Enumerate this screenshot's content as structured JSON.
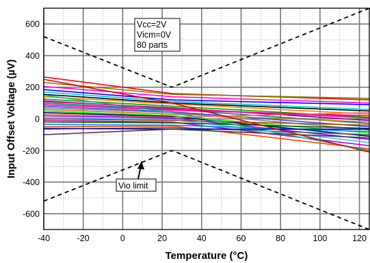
{
  "chart_data": {
    "type": "line",
    "xlabel": "Temperature (°C)",
    "ylabel": "Input Offset Voltage (µV)",
    "xlim": [
      -40,
      125
    ],
    "ylim": [
      -700,
      700
    ],
    "xticks": [
      -40,
      -20,
      0,
      20,
      40,
      60,
      80,
      100,
      120
    ],
    "yticks": [
      -600,
      -400,
      -200,
      0,
      200,
      400,
      600
    ],
    "grid": true,
    "conditions": [
      "Vcc=2V",
      "Vicm=0V",
      "80 parts"
    ],
    "limit_label": "Vio limit",
    "limit_lines": {
      "upper": [
        {
          "x": -40,
          "y": 520
        },
        {
          "x": 25,
          "y": 200
        },
        {
          "x": 125,
          "y": 700
        }
      ],
      "lower": [
        {
          "x": -40,
          "y": -520
        },
        {
          "x": 25,
          "y": -200
        },
        {
          "x": 125,
          "y": -700
        }
      ]
    },
    "series": [
      {
        "color": "#ff0000",
        "values": [
          [
            -40,
            265
          ],
          [
            25,
            160
          ],
          [
            125,
            120
          ]
        ]
      },
      {
        "color": "#808000",
        "values": [
          [
            -40,
            230
          ],
          [
            25,
            155
          ],
          [
            125,
            130
          ]
        ]
      },
      {
        "color": "#ff00ff",
        "values": [
          [
            -40,
            205
          ],
          [
            25,
            140
          ],
          [
            125,
            100
          ]
        ]
      },
      {
        "color": "#0000ff",
        "values": [
          [
            -40,
            185
          ],
          [
            25,
            120
          ],
          [
            125,
            90
          ]
        ]
      },
      {
        "color": "#00cccc",
        "values": [
          [
            -40,
            170
          ],
          [
            25,
            110
          ],
          [
            125,
            60
          ]
        ]
      },
      {
        "color": "#000000",
        "values": [
          [
            -40,
            155
          ],
          [
            25,
            100
          ],
          [
            125,
            50
          ]
        ]
      },
      {
        "color": "#ff8000",
        "values": [
          [
            -40,
            140
          ],
          [
            25,
            95
          ],
          [
            125,
            30
          ]
        ]
      },
      {
        "color": "#00a000",
        "values": [
          [
            -40,
            125
          ],
          [
            25,
            80
          ],
          [
            125,
            10
          ]
        ]
      },
      {
        "color": "#800080",
        "values": [
          [
            -40,
            110
          ],
          [
            25,
            70
          ],
          [
            125,
            -10
          ]
        ]
      },
      {
        "color": "#008080",
        "values": [
          [
            -40,
            100
          ],
          [
            25,
            60
          ],
          [
            125,
            -30
          ]
        ]
      },
      {
        "color": "#ff0080",
        "values": [
          [
            -40,
            90
          ],
          [
            25,
            55
          ],
          [
            125,
            20
          ]
        ]
      },
      {
        "color": "#4040ff",
        "values": [
          [
            -40,
            80
          ],
          [
            25,
            45
          ],
          [
            125,
            -50
          ]
        ]
      },
      {
        "color": "#808080",
        "values": [
          [
            -40,
            70
          ],
          [
            25,
            40
          ],
          [
            125,
            -70
          ]
        ]
      },
      {
        "color": "#c08000",
        "values": [
          [
            -40,
            60
          ],
          [
            25,
            30
          ],
          [
            125,
            -20
          ]
        ]
      },
      {
        "color": "#00ff00",
        "values": [
          [
            -40,
            50
          ],
          [
            25,
            20
          ],
          [
            125,
            -90
          ]
        ]
      },
      {
        "color": "#000080",
        "values": [
          [
            -40,
            40
          ],
          [
            25,
            15
          ],
          [
            125,
            -110
          ]
        ]
      },
      {
        "color": "#ff6060",
        "values": [
          [
            -40,
            30
          ],
          [
            25,
            10
          ],
          [
            125,
            40
          ]
        ]
      },
      {
        "color": "#8000ff",
        "values": [
          [
            -40,
            20
          ],
          [
            25,
            5
          ],
          [
            125,
            -130
          ]
        ]
      },
      {
        "color": "#40c0ff",
        "values": [
          [
            -40,
            10
          ],
          [
            25,
            -5
          ],
          [
            125,
            -150
          ]
        ]
      },
      {
        "color": "#a05000",
        "values": [
          [
            -40,
            0
          ],
          [
            25,
            -10
          ],
          [
            125,
            -40
          ]
        ]
      },
      {
        "color": "#c000c0",
        "values": [
          [
            -40,
            -10
          ],
          [
            25,
            -20
          ],
          [
            125,
            -170
          ]
        ]
      },
      {
        "color": "#006000",
        "values": [
          [
            -40,
            -20
          ],
          [
            25,
            -25
          ],
          [
            125,
            -60
          ]
        ]
      },
      {
        "color": "#0080ff",
        "values": [
          [
            -40,
            -35
          ],
          [
            25,
            -40
          ],
          [
            125,
            -80
          ]
        ]
      },
      {
        "color": "#ff4000",
        "values": [
          [
            -40,
            -50
          ],
          [
            25,
            -45
          ],
          [
            125,
            -190
          ]
        ]
      },
      {
        "color": "#606060",
        "values": [
          [
            -40,
            -65
          ],
          [
            25,
            -55
          ],
          [
            125,
            -100
          ]
        ]
      },
      {
        "color": "#00c080",
        "values": [
          [
            -40,
            150
          ],
          [
            25,
            40
          ],
          [
            125,
            -200
          ]
        ]
      },
      {
        "color": "#ff00c0",
        "values": [
          [
            -40,
            115
          ],
          [
            25,
            65
          ],
          [
            125,
            5
          ]
        ]
      },
      {
        "color": "#0000c0",
        "values": [
          [
            -40,
            -60
          ],
          [
            25,
            -65
          ],
          [
            125,
            -65
          ]
        ]
      },
      {
        "color": "#404040",
        "values": [
          [
            -40,
            -100
          ],
          [
            25,
            -65
          ],
          [
            125,
            -120
          ]
        ]
      },
      {
        "color": "#e00000",
        "values": [
          [
            -40,
            250
          ],
          [
            25,
            100
          ],
          [
            125,
            -210
          ]
        ]
      }
    ]
  }
}
